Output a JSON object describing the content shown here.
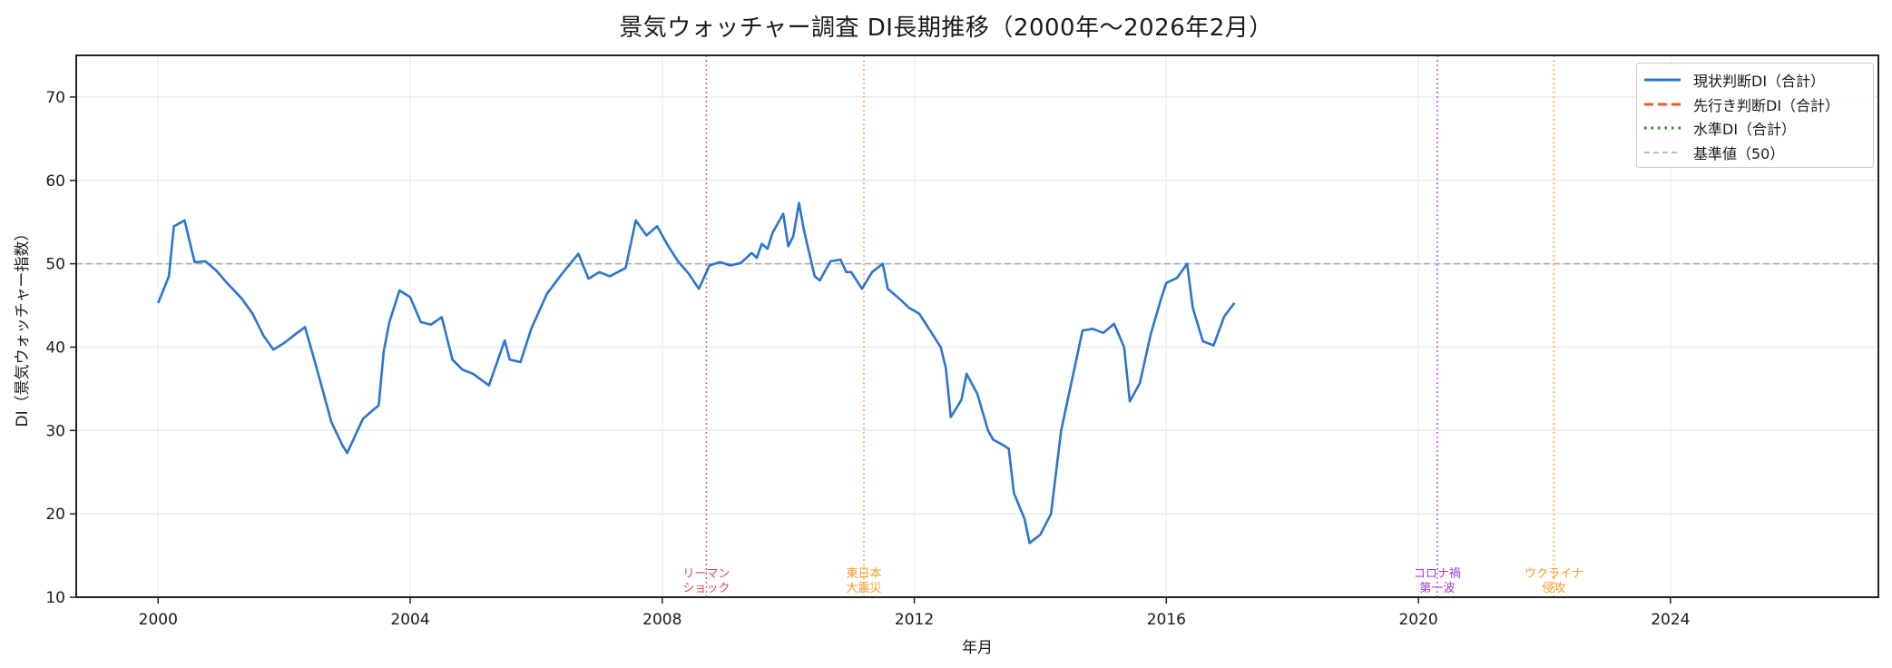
{
  "chart": {
    "title": "景気ウォッチャー調査 DI長期推移（2000年〜2026年2月）",
    "xlabel": "年月",
    "ylabel": "DI（景気ウォッチャー指数）"
  },
  "legend": {
    "items": [
      {
        "label": "現状判断DI（合計）",
        "color": "#2b74d0",
        "style": "solid"
      },
      {
        "label": "先行き判断DI（合計）",
        "color": "#e8601c",
        "style": "dashed"
      },
      {
        "label": "水準DI（合計）",
        "color": "#2e8b2e",
        "style": "dotted"
      },
      {
        "label": "基準値（50）",
        "color": "#aaaaaa",
        "style": "dashed-thin"
      }
    ]
  },
  "events": [
    {
      "x": 2008.7,
      "label_line1": "リーマン",
      "label_line2": "ショック",
      "color": "#e04848"
    },
    {
      "x": 2011.2,
      "label_line1": "東日本",
      "label_line2": "大震災",
      "color": "#f39a2b"
    },
    {
      "x": 2020.3,
      "label_line1": "コロナ禍",
      "label_line2": "第一波",
      "color": "#a03cd0"
    },
    {
      "x": 2022.15,
      "label_line1": "ウクライナ",
      "label_line2": "侵攻",
      "color": "#f39a2b"
    }
  ],
  "chart_data": {
    "type": "line",
    "title": "景気ウォッチャー調査 DI長期推移（2000年〜2026年2月）",
    "xlabel": "年月",
    "ylabel": "DI（景気ウォッチャー指数）",
    "xlim": [
      1998.7,
      2027.3
    ],
    "ylim": [
      10,
      75
    ],
    "xticks": [
      2000,
      2004,
      2008,
      2012,
      2016,
      2020,
      2024
    ],
    "yticks": [
      10,
      20,
      30,
      40,
      50,
      60,
      70
    ],
    "grid": true,
    "legend_position": "upper right",
    "reference_line": {
      "y": 50,
      "label": "基準値（50）"
    },
    "series": [
      {
        "name": "現状判断DI（合計）",
        "points": [
          [
            2000.0,
            45.3
          ],
          [
            2000.17,
            48.5
          ],
          [
            2000.25,
            54.5
          ],
          [
            2000.42,
            55.2
          ],
          [
            2000.58,
            50.2
          ],
          [
            2000.75,
            50.3
          ],
          [
            2000.92,
            49.2
          ],
          [
            2001.08,
            47.8
          ],
          [
            2001.33,
            45.8
          ],
          [
            2001.5,
            44.0
          ],
          [
            2001.67,
            41.4
          ],
          [
            2001.83,
            39.7
          ],
          [
            2002.0,
            40.5
          ],
          [
            2002.17,
            41.5
          ],
          [
            2002.33,
            42.4
          ],
          [
            2002.5,
            37.9
          ],
          [
            2002.75,
            31.0
          ],
          [
            2002.92,
            28.3
          ],
          [
            2003.0,
            27.3
          ],
          [
            2003.25,
            31.4
          ],
          [
            2003.42,
            32.5
          ],
          [
            2003.5,
            33.0
          ],
          [
            2003.58,
            39.5
          ],
          [
            2003.67,
            43.0
          ],
          [
            2003.83,
            46.8
          ],
          [
            2004.0,
            46.0
          ],
          [
            2004.17,
            43.0
          ],
          [
            2004.33,
            42.7
          ],
          [
            2004.5,
            43.6
          ],
          [
            2004.67,
            38.5
          ],
          [
            2004.83,
            37.3
          ],
          [
            2005.0,
            36.8
          ],
          [
            2005.25,
            35.4
          ],
          [
            2005.5,
            40.8
          ],
          [
            2005.58,
            38.5
          ],
          [
            2005.75,
            38.2
          ],
          [
            2005.92,
            42.2
          ],
          [
            2006.17,
            46.4
          ],
          [
            2006.42,
            48.9
          ],
          [
            2006.67,
            51.2
          ],
          [
            2006.83,
            48.2
          ],
          [
            2007.0,
            49.0
          ],
          [
            2007.17,
            48.5
          ],
          [
            2007.42,
            49.5
          ],
          [
            2007.58,
            55.2
          ],
          [
            2007.75,
            53.4
          ],
          [
            2007.92,
            54.5
          ],
          [
            2008.08,
            52.3
          ],
          [
            2008.25,
            50.3
          ],
          [
            2008.42,
            48.8
          ],
          [
            2008.58,
            47.0
          ],
          [
            2008.75,
            49.8
          ],
          [
            2008.92,
            50.2
          ],
          [
            2009.08,
            49.8
          ],
          [
            2009.25,
            50.1
          ],
          [
            2009.42,
            51.3
          ],
          [
            2009.5,
            50.7
          ],
          [
            2009.58,
            52.4
          ],
          [
            2009.67,
            51.8
          ],
          [
            2009.75,
            53.7
          ],
          [
            2009.92,
            56.0
          ],
          [
            2010.0,
            52.1
          ],
          [
            2010.08,
            53.3
          ],
          [
            2010.17,
            57.3
          ],
          [
            2010.25,
            54.0
          ],
          [
            2010.42,
            48.5
          ],
          [
            2010.5,
            48.0
          ],
          [
            2010.67,
            50.3
          ],
          [
            2010.83,
            50.5
          ],
          [
            2010.92,
            49.0
          ],
          [
            2011.0,
            49.0
          ],
          [
            2011.17,
            47.0
          ],
          [
            2011.33,
            49.0
          ],
          [
            2011.5,
            50.0
          ],
          [
            2011.58,
            47.0
          ],
          [
            2011.75,
            45.9
          ],
          [
            2011.92,
            44.7
          ],
          [
            2012.08,
            44.0
          ],
          [
            2012.25,
            42.0
          ],
          [
            2012.42,
            40.0
          ],
          [
            2012.5,
            37.5
          ],
          [
            2012.58,
            31.6
          ],
          [
            2012.75,
            33.7
          ],
          [
            2012.83,
            36.8
          ],
          [
            2013.0,
            34.4
          ],
          [
            2013.17,
            30.0
          ],
          [
            2013.25,
            28.9
          ],
          [
            2013.42,
            28.2
          ],
          [
            2013.5,
            27.8
          ],
          [
            2013.58,
            22.5
          ],
          [
            2013.75,
            19.4
          ],
          [
            2013.83,
            16.5
          ],
          [
            2014.0,
            17.5
          ],
          [
            2014.17,
            20.0
          ],
          [
            2014.33,
            30.0
          ],
          [
            2014.5,
            36.0
          ],
          [
            2014.67,
            42.0
          ],
          [
            2014.83,
            42.2
          ],
          [
            2015.0,
            41.7
          ],
          [
            2015.17,
            42.8
          ],
          [
            2015.33,
            40.0
          ],
          [
            2015.42,
            33.5
          ],
          [
            2015.58,
            35.7
          ],
          [
            2015.75,
            41.5
          ],
          [
            2015.92,
            45.9
          ],
          [
            2016.0,
            47.7
          ],
          [
            2016.17,
            48.3
          ],
          [
            2016.33,
            50.0
          ],
          [
            2016.42,
            44.7
          ],
          [
            2016.58,
            40.7
          ],
          [
            2016.75,
            40.2
          ],
          [
            2016.92,
            43.7
          ],
          [
            2017.08,
            45.3
          ]
        ]
      }
    ]
  }
}
